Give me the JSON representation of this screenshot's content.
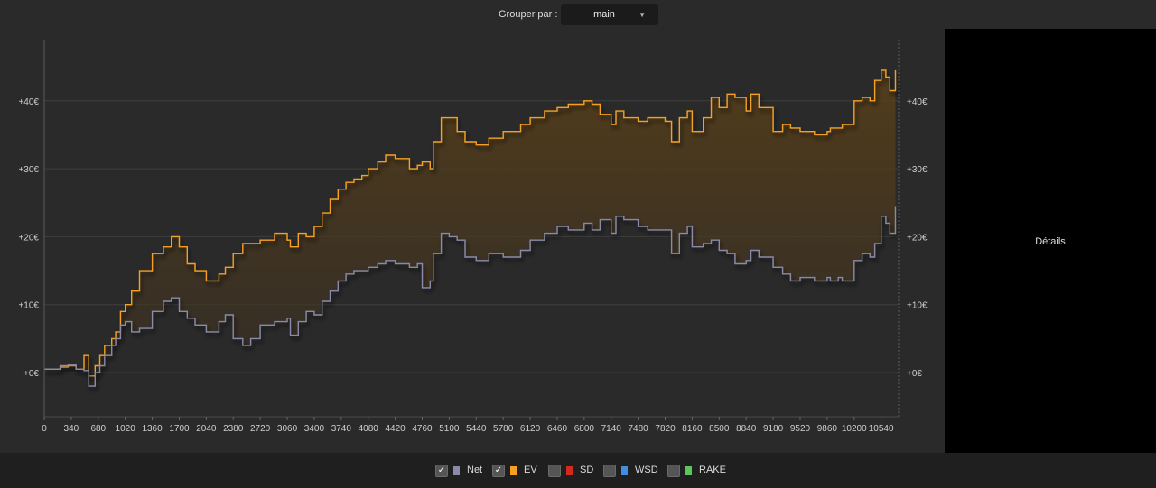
{
  "header": {
    "group_label": "Grouper par :",
    "group_value": "main"
  },
  "details": {
    "label": "Détails"
  },
  "legend": [
    {
      "label": "Net",
      "color": "#8a8aa8",
      "checked": true
    },
    {
      "label": "EV",
      "color": "#f5a020",
      "checked": true
    },
    {
      "label": "SD",
      "color": "#d42a1e",
      "checked": false
    },
    {
      "label": "WSD",
      "color": "#3f8fe0",
      "checked": false
    },
    {
      "label": "RAKE",
      "color": "#58c858",
      "checked": false
    }
  ],
  "chart_data": {
    "type": "line",
    "xlabel": "",
    "ylabel": "",
    "x_ticks": [
      "0",
      "340",
      "680",
      "1020",
      "1360",
      "1700",
      "2040",
      "2380",
      "2720",
      "3060",
      "3400",
      "3740",
      "4080",
      "4420",
      "4760",
      "5100",
      "5440",
      "5780",
      "6120",
      "6460",
      "6800",
      "7140",
      "7480",
      "7820",
      "8160",
      "8500",
      "8840",
      "9180",
      "9520",
      "9860",
      "10200",
      "10540"
    ],
    "y_ticks": [
      "+0€",
      "+10€",
      "+20€",
      "+30€",
      "+40€"
    ],
    "xlim": [
      0,
      10760
    ],
    "ylim": [
      -6.5,
      49
    ],
    "grid": "horizontal",
    "series": [
      {
        "name": "EV",
        "color": "#f5a020",
        "x": [
          0,
          200,
          300,
          400,
          500,
          560,
          640,
          700,
          760,
          850,
          900,
          960,
          1020,
          1100,
          1200,
          1360,
          1500,
          1600,
          1700,
          1800,
          1900,
          2040,
          2200,
          2280,
          2380,
          2500,
          2600,
          2720,
          2900,
          3060,
          3100,
          3200,
          3300,
          3400,
          3500,
          3600,
          3700,
          3800,
          3900,
          4000,
          4080,
          4200,
          4300,
          4420,
          4600,
          4700,
          4760,
          4860,
          4900,
          5000,
          5100,
          5200,
          5300,
          5440,
          5600,
          5780,
          6000,
          6120,
          6300,
          6460,
          6600,
          6800,
          6900,
          7000,
          7140,
          7200,
          7300,
          7480,
          7600,
          7820,
          7900,
          8000,
          8100,
          8160,
          8300,
          8400,
          8500,
          8600,
          8700,
          8840,
          8900,
          9000,
          9180,
          9300,
          9400,
          9520,
          9700,
          9860,
          9900,
          10000,
          10050,
          10200,
          10300,
          10400,
          10460,
          10540,
          10600,
          10650,
          10720
        ],
        "y": [
          0.5,
          0.8,
          1.0,
          0.5,
          2.5,
          -0.5,
          1.0,
          2.5,
          4.0,
          5.0,
          6.0,
          9.0,
          10.0,
          12.0,
          15.0,
          17.5,
          18.5,
          20.0,
          18.5,
          16.0,
          15.0,
          13.5,
          14.5,
          15.5,
          17.5,
          19.0,
          19.0,
          19.5,
          20.5,
          19.5,
          18.5,
          20.5,
          20.0,
          21.5,
          23.5,
          25.5,
          27.0,
          28.0,
          28.5,
          29.0,
          30.0,
          31.0,
          32.0,
          31.5,
          30.0,
          30.5,
          31.0,
          30.0,
          34.0,
          37.5,
          37.5,
          35.5,
          34.0,
          33.5,
          34.5,
          35.5,
          36.5,
          37.5,
          38.5,
          39.0,
          39.5,
          40.0,
          39.5,
          38.0,
          36.5,
          38.5,
          37.5,
          37.0,
          37.5,
          37.0,
          34.0,
          37.5,
          38.5,
          35.5,
          37.5,
          40.5,
          39.0,
          41.0,
          40.5,
          38.5,
          41.0,
          39.0,
          35.5,
          36.5,
          36.0,
          35.5,
          35.0,
          35.5,
          36.0,
          36.0,
          36.5,
          40.0,
          40.5,
          40.0,
          43.0,
          44.5,
          43.5,
          41.5,
          44.5
        ]
      },
      {
        "name": "Net",
        "color": "#8a8aa8",
        "x": [
          0,
          200,
          300,
          400,
          500,
          560,
          640,
          700,
          760,
          850,
          900,
          960,
          1020,
          1100,
          1200,
          1360,
          1500,
          1600,
          1700,
          1800,
          1900,
          2040,
          2200,
          2280,
          2380,
          2500,
          2600,
          2720,
          2900,
          3060,
          3100,
          3200,
          3300,
          3400,
          3500,
          3600,
          3700,
          3800,
          3900,
          4000,
          4080,
          4200,
          4300,
          4420,
          4600,
          4700,
          4760,
          4860,
          4900,
          5000,
          5100,
          5200,
          5300,
          5440,
          5600,
          5780,
          6000,
          6120,
          6300,
          6460,
          6600,
          6800,
          6900,
          7000,
          7140,
          7200,
          7300,
          7480,
          7600,
          7820,
          7900,
          8000,
          8100,
          8160,
          8300,
          8400,
          8500,
          8600,
          8700,
          8840,
          8900,
          9000,
          9180,
          9300,
          9400,
          9520,
          9700,
          9860,
          9900,
          10000,
          10050,
          10200,
          10300,
          10400,
          10460,
          10540,
          10600,
          10650,
          10720
        ],
        "y": [
          0.5,
          1.0,
          1.2,
          0.5,
          0.3,
          -2.0,
          0.0,
          1.0,
          2.5,
          4.0,
          5.0,
          7.0,
          7.5,
          6.0,
          6.5,
          9.0,
          10.5,
          11.0,
          9.0,
          8.0,
          7.0,
          6.0,
          7.5,
          8.5,
          5.0,
          4.0,
          5.0,
          7.0,
          7.5,
          8.0,
          5.5,
          7.5,
          9.0,
          8.5,
          10.5,
          12.0,
          13.5,
          14.5,
          15.0,
          15.0,
          15.5,
          16.0,
          16.5,
          16.0,
          15.5,
          16.0,
          12.5,
          13.5,
          17.5,
          20.5,
          20.0,
          19.5,
          17.0,
          16.5,
          17.5,
          17.0,
          18.0,
          19.5,
          20.5,
          21.5,
          21.0,
          22.0,
          21.0,
          22.5,
          20.5,
          23.0,
          22.5,
          21.5,
          21.0,
          21.0,
          17.5,
          20.5,
          21.5,
          18.5,
          19.0,
          19.5,
          18.0,
          17.5,
          16.0,
          16.5,
          18.0,
          17.0,
          15.5,
          14.5,
          13.5,
          14.0,
          13.5,
          14.0,
          13.5,
          14.0,
          13.5,
          16.5,
          17.5,
          17.0,
          19.0,
          23.0,
          22.0,
          20.5,
          24.5
        ]
      }
    ]
  }
}
